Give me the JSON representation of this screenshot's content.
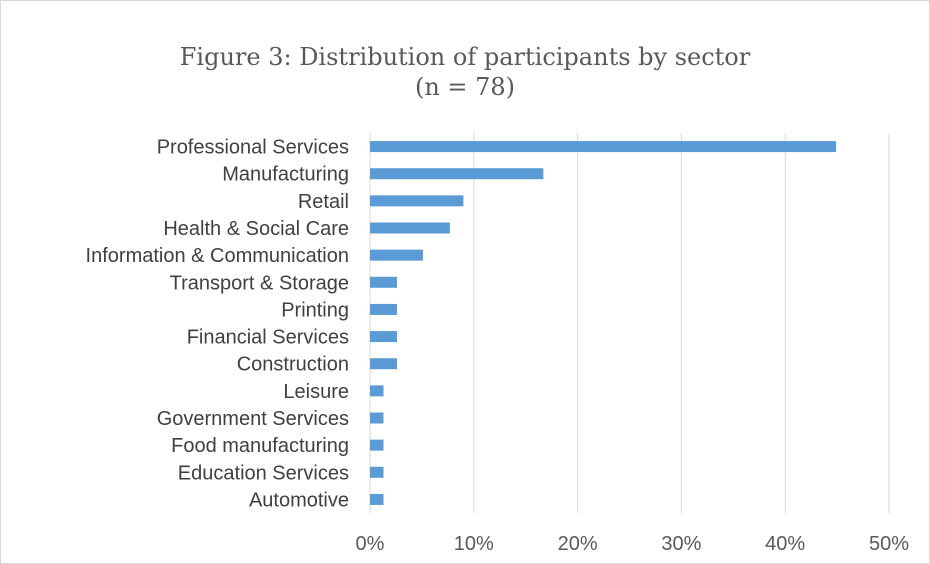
{
  "chart_data": {
    "type": "bar",
    "orientation": "horizontal",
    "title_line1": "Figure 3: Distribution of participants by sector",
    "title_line2": "(n = 78)",
    "categories": [
      "Professional Services",
      "Manufacturing",
      "Retail",
      "Health & Social Care",
      "Information & Communication",
      "Transport & Storage",
      "Printing",
      "Financial Services",
      "Construction",
      "Leisure",
      "Government Services",
      "Food manufacturing",
      "Education Services",
      "Automotive"
    ],
    "values": [
      0.449,
      0.167,
      0.09,
      0.077,
      0.051,
      0.026,
      0.026,
      0.026,
      0.026,
      0.013,
      0.013,
      0.013,
      0.013,
      0.013
    ],
    "xlim": [
      0,
      0.5
    ],
    "xticks": [
      "0%",
      "10%",
      "20%",
      "30%",
      "40%",
      "50%"
    ],
    "grid": "vertical",
    "bar_color": "#5b9bd5",
    "grid_color": "#d9d9d9"
  }
}
